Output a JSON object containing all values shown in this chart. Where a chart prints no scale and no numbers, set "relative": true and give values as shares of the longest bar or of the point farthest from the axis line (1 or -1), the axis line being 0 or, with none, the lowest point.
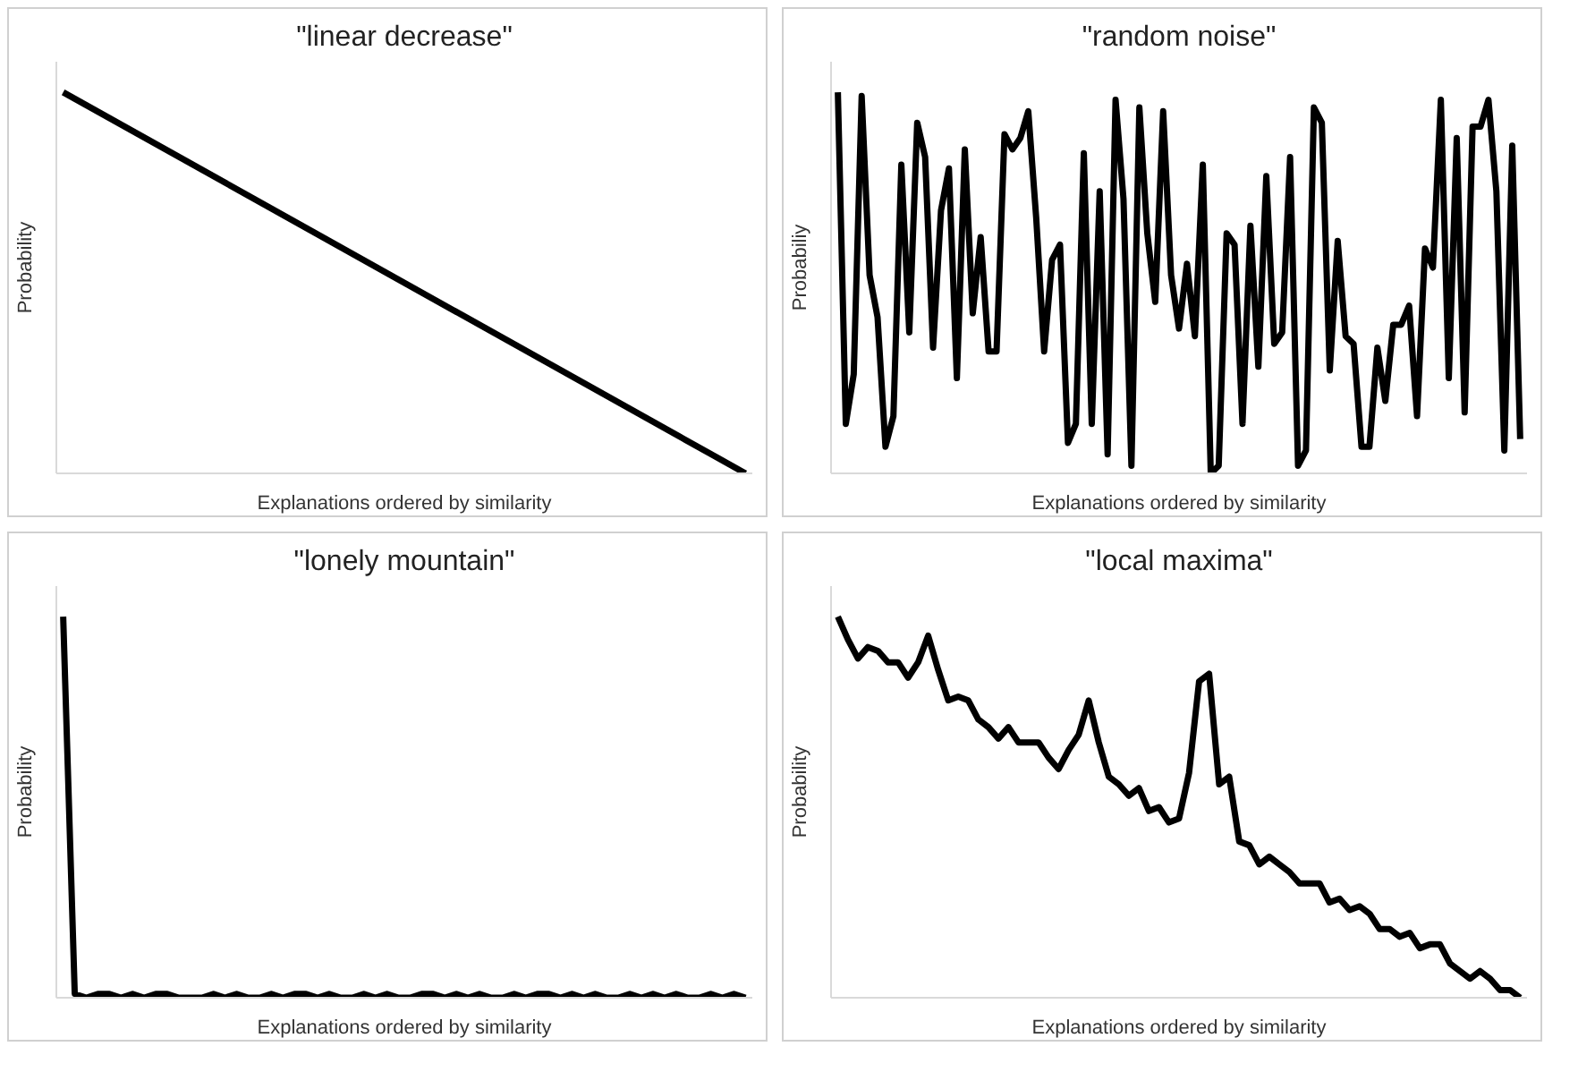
{
  "chart_data": [
    {
      "type": "line",
      "title": "\"linear decrease\"",
      "xlabel": "Explanations ordered by similarity",
      "ylabel": "Probability",
      "relative": true,
      "tick_labels": false,
      "color": "#000000",
      "categories": [
        null,
        null
      ],
      "values": [
        1.0,
        0.0
      ]
    },
    {
      "type": "line",
      "title": "\"random noise\"",
      "xlabel": "Explanations ordered by similarity",
      "ylabel": "Probabiliy",
      "relative": true,
      "tick_labels": false,
      "color": "#000000",
      "categories": [
        null,
        null,
        null,
        null,
        null,
        null,
        null,
        null,
        null,
        null,
        null,
        null,
        null,
        null,
        null,
        null,
        null,
        null,
        null,
        null,
        null,
        null,
        null,
        null,
        null,
        null,
        null,
        null,
        null,
        null,
        null,
        null,
        null,
        null,
        null,
        null,
        null,
        null,
        null,
        null,
        null,
        null,
        null,
        null,
        null,
        null,
        null,
        null,
        null,
        null,
        null,
        null,
        null,
        null,
        null,
        null,
        null,
        null,
        null,
        null,
        null,
        null,
        null,
        null,
        null,
        null,
        null,
        null,
        null,
        null,
        null,
        null,
        null,
        null,
        null,
        null,
        null,
        null,
        null,
        null,
        null,
        null,
        null,
        null,
        null,
        null,
        null
      ],
      "values": [
        1.0,
        0.13,
        0.26,
        0.99,
        0.52,
        0.41,
        0.07,
        0.15,
        0.81,
        0.37,
        0.92,
        0.83,
        0.33,
        0.69,
        0.8,
        0.25,
        0.85,
        0.42,
        0.62,
        0.32,
        0.32,
        0.89,
        0.85,
        0.88,
        0.95,
        0.67,
        0.32,
        0.56,
        0.6,
        0.08,
        0.13,
        0.84,
        0.13,
        0.74,
        0.05,
        0.98,
        0.72,
        0.02,
        0.96,
        0.63,
        0.45,
        0.95,
        0.52,
        0.38,
        0.55,
        0.36,
        0.81,
        0.0,
        0.02,
        0.63,
        0.6,
        0.13,
        0.65,
        0.28,
        0.78,
        0.34,
        0.37,
        0.83,
        0.02,
        0.06,
        0.96,
        0.92,
        0.27,
        0.61,
        0.36,
        0.34,
        0.07,
        0.07,
        0.33,
        0.19,
        0.39,
        0.39,
        0.44,
        0.15,
        0.59,
        0.54,
        0.98,
        0.25,
        0.88,
        0.16,
        0.91,
        0.91,
        0.98,
        0.74,
        0.06,
        0.86,
        0.09
      ]
    },
    {
      "type": "line",
      "title": "\"lonely mountain\"",
      "xlabel": "Explanations ordered by similarity",
      "ylabel": "Probability",
      "relative": true,
      "tick_labels": false,
      "color": "#000000",
      "categories": [
        null,
        null,
        null,
        null,
        null,
        null,
        null,
        null,
        null,
        null,
        null,
        null,
        null,
        null,
        null,
        null,
        null,
        null,
        null,
        null,
        null,
        null,
        null,
        null,
        null,
        null,
        null,
        null,
        null,
        null,
        null,
        null,
        null,
        null,
        null,
        null,
        null,
        null,
        null,
        null,
        null,
        null,
        null,
        null,
        null,
        null,
        null,
        null,
        null,
        null,
        null,
        null,
        null,
        null,
        null,
        null,
        null,
        null,
        null,
        null
      ],
      "values": [
        1.0,
        0.01,
        0.0,
        0.01,
        0.01,
        0.0,
        0.01,
        0.0,
        0.01,
        0.01,
        0.0,
        0.0,
        0.0,
        0.01,
        0.0,
        0.01,
        0.0,
        0.0,
        0.01,
        0.0,
        0.01,
        0.01,
        0.0,
        0.01,
        0.0,
        0.0,
        0.01,
        0.0,
        0.01,
        0.0,
        0.0,
        0.01,
        0.01,
        0.0,
        0.01,
        0.0,
        0.01,
        0.0,
        0.0,
        0.01,
        0.0,
        0.01,
        0.01,
        0.0,
        0.01,
        0.0,
        0.01,
        0.0,
        0.0,
        0.01,
        0.0,
        0.01,
        0.0,
        0.01,
        0.0,
        0.0,
        0.01,
        0.0,
        0.01,
        0.0
      ]
    },
    {
      "type": "line",
      "title": "\"local maxima\"",
      "xlabel": "Explanations ordered by similarity",
      "ylabel": "Probability",
      "relative": true,
      "tick_labels": false,
      "color": "#000000",
      "categories": [
        null,
        null,
        null,
        null,
        null,
        null,
        null,
        null,
        null,
        null,
        null,
        null,
        null,
        null,
        null,
        null,
        null,
        null,
        null,
        null,
        null,
        null,
        null,
        null,
        null,
        null,
        null,
        null,
        null,
        null,
        null,
        null,
        null,
        null,
        null,
        null,
        null,
        null,
        null,
        null,
        null,
        null,
        null,
        null,
        null,
        null,
        null,
        null,
        null,
        null,
        null,
        null,
        null,
        null,
        null,
        null,
        null,
        null,
        null,
        null,
        null,
        null,
        null,
        null,
        null,
        null,
        null,
        null,
        null
      ],
      "values": [
        1.0,
        0.94,
        0.89,
        0.92,
        0.91,
        0.88,
        0.88,
        0.84,
        0.88,
        0.95,
        0.86,
        0.78,
        0.79,
        0.78,
        0.73,
        0.71,
        0.68,
        0.71,
        0.67,
        0.67,
        0.67,
        0.63,
        0.6,
        0.65,
        0.69,
        0.78,
        0.67,
        0.58,
        0.56,
        0.53,
        0.55,
        0.49,
        0.5,
        0.46,
        0.47,
        0.59,
        0.83,
        0.85,
        0.56,
        0.58,
        0.41,
        0.4,
        0.35,
        0.37,
        0.35,
        0.33,
        0.3,
        0.3,
        0.3,
        0.25,
        0.26,
        0.23,
        0.24,
        0.22,
        0.18,
        0.18,
        0.16,
        0.17,
        0.13,
        0.14,
        0.14,
        0.09,
        0.07,
        0.05,
        0.07,
        0.05,
        0.02,
        0.02,
        0.0
      ]
    }
  ]
}
